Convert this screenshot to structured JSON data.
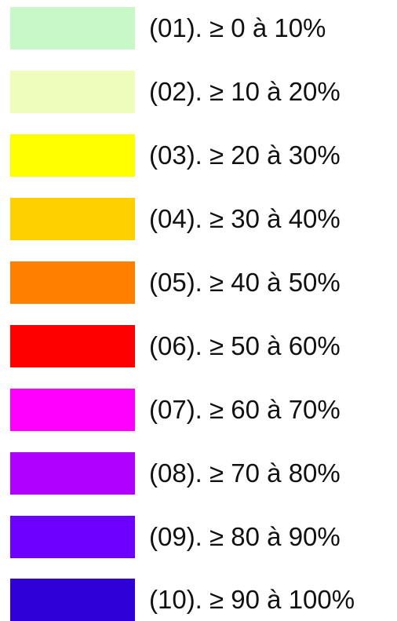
{
  "legend": {
    "items": [
      {
        "label": "(01). ≥ 0 à 10%",
        "color": "#c8f8c8"
      },
      {
        "label": "(02). ≥ 10 à 20%",
        "color": "#eefcbc"
      },
      {
        "label": "(03). ≥ 20 à 30%",
        "color": "#ffff00"
      },
      {
        "label": "(04). ≥ 30 à 40%",
        "color": "#ffd000"
      },
      {
        "label": "(05). ≥ 40 à 50%",
        "color": "#ff7f00"
      },
      {
        "label": "(06). ≥ 50 à 60%",
        "color": "#ff0000"
      },
      {
        "label": "(07). ≥ 60 à 70%",
        "color": "#ff00ff"
      },
      {
        "label": "(08). ≥ 70 à 80%",
        "color": "#b000ff"
      },
      {
        "label": "(09). ≥ 80 à 90%",
        "color": "#6e00ff"
      },
      {
        "label": "(10). ≥ 90 à 100%",
        "color": "#3000d8"
      }
    ]
  }
}
